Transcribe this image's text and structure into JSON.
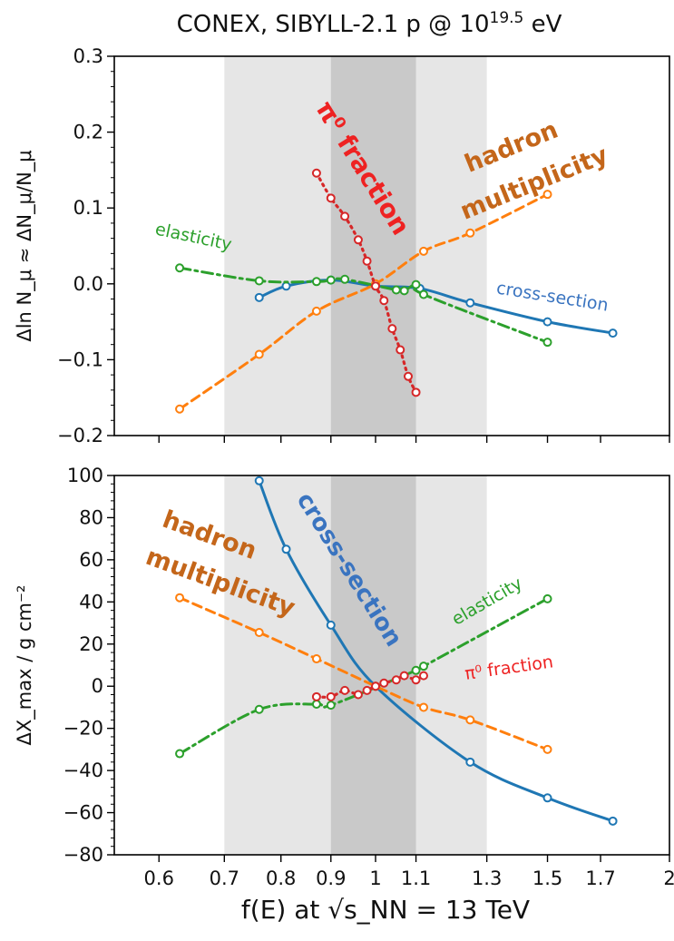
{
  "chart_data": {
    "title": "CONEX, SIBYLL-2.1 p @ 10^19.5 eV",
    "xlabel": "f(E) at √s_NN = 13 TeV",
    "x_scale": "log",
    "xlim": [
      0.54,
      2.0
    ],
    "x_ticks": [
      0.6,
      0.7,
      0.8,
      0.9,
      1,
      1.1,
      1.3,
      1.5,
      1.7,
      2
    ],
    "x_tick_labels": [
      "0.6",
      "0.7",
      "0.8",
      "0.9",
      "1",
      "1.1",
      "1.3",
      "1.5",
      "1.7",
      "2"
    ],
    "shaded_bands": [
      {
        "from": 0.7,
        "to": 1.3,
        "shade": "light"
      },
      {
        "from": 0.9,
        "to": 1.1,
        "shade": "dark"
      }
    ],
    "colors": {
      "cross_section": "#1f77b4",
      "hadron_multiplicity": "#ff7f0e",
      "elasticity": "#2ca02c",
      "pi0_fraction": "#d62728"
    },
    "panels": [
      {
        "type": "line",
        "ylabel": "Δln N_μ ≈ ΔN_μ/N_μ",
        "ylim": [
          -0.2,
          0.3
        ],
        "y_ticks": [
          -0.2,
          -0.1,
          0.0,
          0.1,
          0.2,
          0.3
        ],
        "y_tick_labels": [
          "−0.2",
          "−0.1",
          "0.0",
          "0.1",
          "0.2",
          "0.3"
        ],
        "series": [
          {
            "key": "cross_section",
            "x": [
              0.76,
              0.81,
              0.9,
              1.0,
              1.11,
              1.25,
              1.5,
              1.75
            ],
            "y": [
              -0.018,
              -0.003,
              0.005,
              -0.003,
              -0.006,
              -0.025,
              -0.05,
              -0.065
            ]
          },
          {
            "key": "hadron_multiplicity",
            "x": [
              0.63,
              0.76,
              0.87,
              1.0,
              1.12,
              1.25,
              1.5
            ],
            "y": [
              -0.165,
              -0.093,
              -0.036,
              0.0,
              0.043,
              0.067,
              0.118
            ]
          },
          {
            "key": "elasticity",
            "x": [
              0.63,
              0.76,
              0.87,
              0.9,
              0.93,
              1.05,
              1.07,
              1.1,
              1.12,
              1.5
            ],
            "y": [
              0.021,
              0.004,
              0.003,
              0.005,
              0.006,
              -0.008,
              -0.009,
              -0.001,
              -0.014,
              -0.077
            ]
          },
          {
            "key": "pi0_fraction",
            "x": [
              0.87,
              0.9,
              0.93,
              0.96,
              0.98,
              1.0,
              1.02,
              1.04,
              1.06,
              1.08,
              1.1
            ],
            "y": [
              0.146,
              0.113,
              0.089,
              0.058,
              0.03,
              -0.003,
              -0.022,
              -0.059,
              -0.087,
              -0.122,
              -0.143
            ]
          }
        ],
        "annotations": [
          {
            "series": "pi0_fraction",
            "text": "π⁰ fraction"
          },
          {
            "series": "hadron_multiplicity",
            "text": "hadron"
          },
          {
            "series": "hadron_multiplicity",
            "text": "multiplicity"
          },
          {
            "series": "elasticity",
            "text": "elasticity"
          },
          {
            "series": "cross_section",
            "text": "cross-section"
          }
        ]
      },
      {
        "type": "line",
        "ylabel": "ΔX_max / g cm⁻²",
        "ylim": [
          -80,
          100
        ],
        "y_ticks": [
          -80,
          -60,
          -40,
          -20,
          0,
          20,
          40,
          60,
          80,
          100
        ],
        "y_tick_labels": [
          "−80",
          "−60",
          "−40",
          "−20",
          "0",
          "20",
          "40",
          "60",
          "80",
          "100"
        ],
        "series": [
          {
            "key": "cross_section",
            "x": [
              0.76,
              0.81,
              0.9,
              1.0,
              1.25,
              1.5,
              1.75
            ],
            "y": [
              97.5,
              65,
              29,
              0,
              -36,
              -53,
              -64
            ]
          },
          {
            "key": "hadron_multiplicity",
            "x": [
              0.63,
              0.76,
              0.87,
              1.0,
              1.12,
              1.25,
              1.5
            ],
            "y": [
              42,
              25.5,
              13,
              0,
              -10,
              -16,
              -30
            ]
          },
          {
            "key": "elasticity",
            "x": [
              0.63,
              0.76,
              0.87,
              0.9,
              1.1,
              1.12,
              1.5
            ],
            "y": [
              -32,
              -11,
              -8.5,
              -9,
              7.5,
              9.5,
              41.5
            ]
          },
          {
            "key": "pi0_fraction",
            "x": [
              0.87,
              0.9,
              0.93,
              0.96,
              0.98,
              1.0,
              1.02,
              1.05,
              1.07,
              1.1,
              1.12
            ],
            "y": [
              -5,
              -5,
              -2,
              -4,
              -2,
              0,
              1.5,
              3,
              5,
              3,
              5
            ]
          }
        ],
        "annotations": [
          {
            "series": "hadron_multiplicity",
            "text": "hadron"
          },
          {
            "series": "hadron_multiplicity",
            "text": "multiplicity"
          },
          {
            "series": "cross_section",
            "text": "cross-section"
          },
          {
            "series": "elasticity",
            "text": "elasticity"
          },
          {
            "series": "pi0_fraction",
            "text": "π⁰ fraction"
          }
        ]
      }
    ]
  }
}
